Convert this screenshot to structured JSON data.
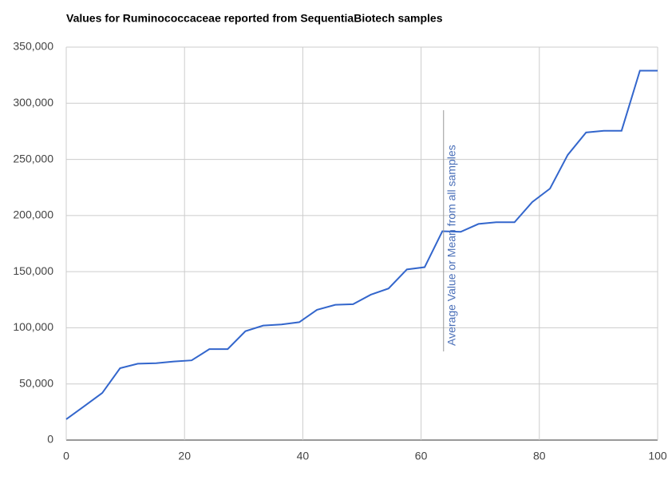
{
  "chart_data": {
    "type": "line",
    "title": "Values for Ruminococcaceae reported from SequentiaBiotech samples",
    "x": [
      0,
      3,
      6.1,
      9.1,
      12.1,
      15.2,
      18.2,
      21.2,
      24.2,
      27.3,
      30.3,
      33.3,
      36.4,
      39.4,
      42.4,
      45.5,
      48.5,
      51.5,
      54.5,
      57.6,
      60.6,
      63.6,
      66.7,
      69.7,
      72.7,
      75.8,
      78.8,
      81.8,
      84.8,
      87.9,
      90.9,
      93.9,
      97,
      100
    ],
    "series": [
      {
        "name": "Ruminococcaceae",
        "color": "#3366cc",
        "values": [
          18500,
          30000,
          42000,
          64000,
          68000,
          68500,
          70000,
          71000,
          81000,
          81000,
          97000,
          102000,
          103000,
          105000,
          116000,
          120500,
          121000,
          129500,
          135000,
          152000,
          154000,
          186000,
          185500,
          192500,
          194000,
          194000,
          212000,
          224000,
          254000,
          274000,
          275500,
          275500,
          329000,
          329000
        ]
      }
    ],
    "xlim": [
      0,
      100
    ],
    "xticks": [
      0,
      20,
      40,
      60,
      80,
      100
    ],
    "ylim": [
      0,
      350000
    ],
    "yticks": [
      0,
      {
        "value": 50000,
        "label": "50,000"
      },
      {
        "value": 100000,
        "label": "100,000"
      },
      {
        "value": 150000,
        "label": "150,000"
      },
      {
        "value": 200000,
        "label": "200,000"
      },
      {
        "value": 250000,
        "label": "250,000"
      },
      {
        "value": 300000,
        "label": "300,000"
      },
      {
        "value": 350000,
        "label": "350,000"
      }
    ],
    "grid": true,
    "annotation": {
      "text": "Average Value or Mean from all samples",
      "x": 63.8,
      "color": "#4a6fb8"
    }
  }
}
